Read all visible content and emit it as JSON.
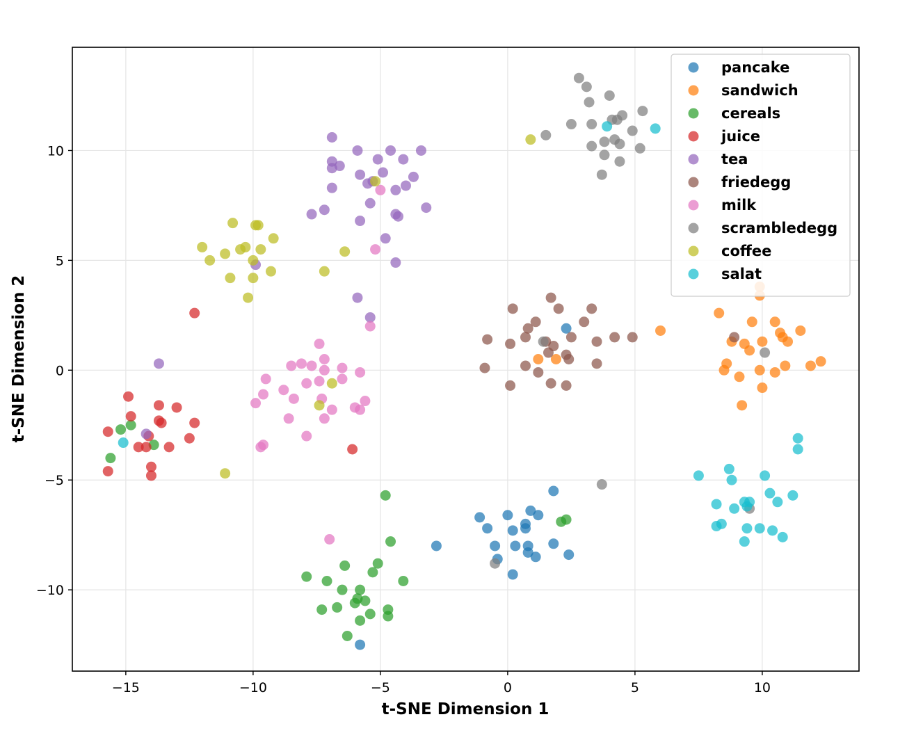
{
  "chart_data": {
    "type": "scatter",
    "title": "",
    "xlabel": "t-SNE Dimension 1",
    "ylabel": "t-SNE Dimension 2",
    "xlim": [
      -17.1,
      13.8
    ],
    "ylim": [
      -13.7,
      14.7
    ],
    "xticks": [
      -15,
      -10,
      -5,
      0,
      5,
      10
    ],
    "yticks": [
      -10,
      -5,
      0,
      5,
      10
    ],
    "xtick_labels": [
      "−15",
      "−10",
      "−5",
      "0",
      "5",
      "10"
    ],
    "ytick_labels": [
      "−10",
      "−5",
      "0",
      "5",
      "10"
    ],
    "grid": true,
    "legend_position": "top-right",
    "series": [
      {
        "name": "pancake",
        "color": "#1f77b4",
        "points": [
          [
            -1.1,
            -6.7
          ],
          [
            -0.8,
            -7.2
          ],
          [
            -0.5,
            -8.0
          ],
          [
            -0.4,
            -8.6
          ],
          [
            0.0,
            -6.6
          ],
          [
            0.2,
            -7.3
          ],
          [
            0.3,
            -8.0
          ],
          [
            0.2,
            -9.3
          ],
          [
            0.7,
            -7.0
          ],
          [
            0.7,
            -7.2
          ],
          [
            0.9,
            -6.4
          ],
          [
            0.8,
            -8.0
          ],
          [
            0.8,
            -8.3
          ],
          [
            1.2,
            -6.6
          ],
          [
            1.1,
            -8.5
          ],
          [
            1.8,
            -5.5
          ],
          [
            1.8,
            -7.9
          ],
          [
            2.4,
            -8.4
          ],
          [
            -2.8,
            -8.0
          ],
          [
            -5.8,
            -12.5
          ],
          [
            2.3,
            1.9
          ]
        ]
      },
      {
        "name": "sandwich",
        "color": "#ff7f0e",
        "points": [
          [
            8.3,
            2.6
          ],
          [
            8.6,
            0.3
          ],
          [
            8.5,
            0.0
          ],
          [
            8.8,
            1.3
          ],
          [
            9.1,
            -0.3
          ],
          [
            9.3,
            1.2
          ],
          [
            9.5,
            0.9
          ],
          [
            9.6,
            2.2
          ],
          [
            9.2,
            -1.6
          ],
          [
            9.9,
            3.4
          ],
          [
            9.9,
            3.8
          ],
          [
            10.0,
            1.3
          ],
          [
            9.9,
            0.0
          ],
          [
            10.0,
            -0.8
          ],
          [
            10.5,
            2.2
          ],
          [
            10.5,
            -0.1
          ],
          [
            10.7,
            1.7
          ],
          [
            10.8,
            1.5
          ],
          [
            10.9,
            0.2
          ],
          [
            11.0,
            1.3
          ],
          [
            11.5,
            1.8
          ],
          [
            11.9,
            0.2
          ],
          [
            12.3,
            0.4
          ],
          [
            6.0,
            1.8
          ],
          [
            1.2,
            0.5
          ],
          [
            1.9,
            0.5
          ]
        ]
      },
      {
        "name": "cereals",
        "color": "#2ca02c",
        "points": [
          [
            -15.6,
            -4.0
          ],
          [
            -15.2,
            -2.7
          ],
          [
            -14.8,
            -2.5
          ],
          [
            -13.9,
            -3.4
          ],
          [
            -7.9,
            -9.4
          ],
          [
            -7.3,
            -10.9
          ],
          [
            -7.1,
            -9.6
          ],
          [
            -6.7,
            -10.8
          ],
          [
            -6.5,
            -10.0
          ],
          [
            -6.4,
            -8.9
          ],
          [
            -6.3,
            -12.1
          ],
          [
            -6.0,
            -10.6
          ],
          [
            -5.9,
            -10.4
          ],
          [
            -5.8,
            -10.0
          ],
          [
            -5.8,
            -11.4
          ],
          [
            -5.6,
            -10.5
          ],
          [
            -5.4,
            -11.1
          ],
          [
            -5.3,
            -9.2
          ],
          [
            -5.1,
            -8.8
          ],
          [
            -4.8,
            -5.7
          ],
          [
            -4.6,
            -7.8
          ],
          [
            -4.7,
            -10.9
          ],
          [
            -4.7,
            -11.2
          ],
          [
            -4.1,
            -9.6
          ],
          [
            2.3,
            -6.8
          ],
          [
            2.1,
            -6.9
          ]
        ]
      },
      {
        "name": "juice",
        "color": "#d62728",
        "points": [
          [
            -15.7,
            -2.8
          ],
          [
            -15.7,
            -4.6
          ],
          [
            -14.9,
            -1.2
          ],
          [
            -14.8,
            -2.1
          ],
          [
            -14.5,
            -3.5
          ],
          [
            -14.2,
            -3.5
          ],
          [
            -14.1,
            -3.0
          ],
          [
            -14.0,
            -4.4
          ],
          [
            -14.0,
            -4.8
          ],
          [
            -13.7,
            -1.6
          ],
          [
            -13.7,
            -2.3
          ],
          [
            -13.6,
            -2.4
          ],
          [
            -13.3,
            -3.5
          ],
          [
            -13.0,
            -1.7
          ],
          [
            -12.5,
            -3.1
          ],
          [
            -12.3,
            -2.4
          ],
          [
            -12.3,
            2.6
          ],
          [
            -6.1,
            -3.6
          ]
        ]
      },
      {
        "name": "tea",
        "color": "#9467bd",
        "points": [
          [
            -6.9,
            10.6
          ],
          [
            -6.9,
            9.5
          ],
          [
            -6.9,
            9.2
          ],
          [
            -6.6,
            9.3
          ],
          [
            -6.9,
            8.3
          ],
          [
            -7.7,
            7.1
          ],
          [
            -7.2,
            7.3
          ],
          [
            -5.9,
            10.0
          ],
          [
            -5.8,
            8.9
          ],
          [
            -5.5,
            8.5
          ],
          [
            -5.3,
            8.6
          ],
          [
            -5.4,
            7.6
          ],
          [
            -5.8,
            6.8
          ],
          [
            -5.1,
            9.6
          ],
          [
            -4.9,
            9.0
          ],
          [
            -4.6,
            10.0
          ],
          [
            -4.1,
            9.6
          ],
          [
            -4.4,
            8.2
          ],
          [
            -4.0,
            8.4
          ],
          [
            -3.7,
            8.8
          ],
          [
            -3.4,
            10.0
          ],
          [
            -4.4,
            7.1
          ],
          [
            -4.3,
            7.0
          ],
          [
            -3.2,
            7.4
          ],
          [
            -4.8,
            6.0
          ],
          [
            -4.4,
            4.9
          ],
          [
            -5.9,
            3.3
          ],
          [
            -5.4,
            2.4
          ],
          [
            -13.7,
            0.3
          ],
          [
            -14.2,
            -2.9
          ],
          [
            -9.9,
            4.8
          ]
        ]
      },
      {
        "name": "friedegg",
        "color": "#8c564b",
        "points": [
          [
            0.2,
            2.8
          ],
          [
            -0.8,
            1.4
          ],
          [
            0.1,
            1.2
          ],
          [
            -0.9,
            0.1
          ],
          [
            0.8,
            1.9
          ],
          [
            0.7,
            1.5
          ],
          [
            1.1,
            2.2
          ],
          [
            1.6,
            0.8
          ],
          [
            1.7,
            3.3
          ],
          [
            1.8,
            1.1
          ],
          [
            2.0,
            2.8
          ],
          [
            1.2,
            -0.1
          ],
          [
            0.7,
            0.2
          ],
          [
            0.1,
            -0.7
          ],
          [
            1.5,
            1.3
          ],
          [
            1.7,
            -0.6
          ],
          [
            2.3,
            0.7
          ],
          [
            2.4,
            0.5
          ],
          [
            2.5,
            1.5
          ],
          [
            2.3,
            -0.7
          ],
          [
            3.0,
            2.2
          ],
          [
            3.3,
            2.8
          ],
          [
            3.5,
            1.3
          ],
          [
            3.5,
            0.3
          ],
          [
            4.2,
            1.5
          ],
          [
            4.9,
            1.5
          ],
          [
            8.9,
            1.5
          ]
        ]
      },
      {
        "name": "milk",
        "color": "#e377c2",
        "points": [
          [
            -7.4,
            1.2
          ],
          [
            -7.7,
            0.2
          ],
          [
            -8.1,
            0.3
          ],
          [
            -8.5,
            0.2
          ],
          [
            -7.2,
            0.5
          ],
          [
            -7.4,
            -0.5
          ],
          [
            -7.2,
            0.0
          ],
          [
            -7.9,
            -0.6
          ],
          [
            -6.5,
            0.1
          ],
          [
            -6.5,
            -0.4
          ],
          [
            -5.8,
            -0.1
          ],
          [
            -8.8,
            -0.9
          ],
          [
            -8.4,
            -1.3
          ],
          [
            -9.5,
            -0.4
          ],
          [
            -9.6,
            -1.1
          ],
          [
            -9.9,
            -1.5
          ],
          [
            -7.3,
            -1.3
          ],
          [
            -7.2,
            -2.2
          ],
          [
            -6.9,
            -1.8
          ],
          [
            -6.0,
            -1.7
          ],
          [
            -5.8,
            -1.8
          ],
          [
            -5.6,
            -1.4
          ],
          [
            -8.6,
            -2.2
          ],
          [
            -7.9,
            -3.0
          ],
          [
            -9.7,
            -3.5
          ],
          [
            -9.6,
            -3.4
          ],
          [
            -7.0,
            -7.7
          ],
          [
            -5.4,
            2.0
          ],
          [
            -5.2,
            5.5
          ],
          [
            -5.0,
            8.2
          ]
        ]
      },
      {
        "name": "scrambledegg",
        "color": "#7f7f7f",
        "points": [
          [
            2.8,
            13.3
          ],
          [
            3.1,
            12.9
          ],
          [
            3.2,
            12.2
          ],
          [
            4.0,
            12.5
          ],
          [
            2.5,
            11.2
          ],
          [
            3.3,
            11.2
          ],
          [
            3.8,
            10.4
          ],
          [
            3.3,
            10.2
          ],
          [
            3.8,
            9.8
          ],
          [
            3.7,
            8.9
          ],
          [
            4.1,
            11.4
          ],
          [
            4.3,
            11.4
          ],
          [
            4.5,
            11.6
          ],
          [
            4.2,
            10.5
          ],
          [
            4.4,
            10.3
          ],
          [
            4.9,
            10.9
          ],
          [
            4.4,
            9.5
          ],
          [
            5.3,
            11.8
          ],
          [
            5.2,
            10.1
          ],
          [
            1.5,
            10.7
          ],
          [
            3.7,
            -5.2
          ],
          [
            -0.5,
            -8.8
          ],
          [
            1.4,
            1.3
          ],
          [
            9.5,
            -6.3
          ],
          [
            10.1,
            0.8
          ]
        ]
      },
      {
        "name": "coffee",
        "color": "#bcbd22",
        "points": [
          [
            -12.0,
            5.6
          ],
          [
            -11.7,
            5.0
          ],
          [
            -11.1,
            5.3
          ],
          [
            -10.8,
            6.7
          ],
          [
            -10.9,
            4.2
          ],
          [
            -10.5,
            5.5
          ],
          [
            -10.3,
            5.6
          ],
          [
            -10.0,
            5.0
          ],
          [
            -10.0,
            4.2
          ],
          [
            -9.9,
            6.6
          ],
          [
            -9.8,
            6.6
          ],
          [
            -9.7,
            5.5
          ],
          [
            -9.3,
            4.5
          ],
          [
            -9.2,
            6.0
          ],
          [
            -10.2,
            3.3
          ],
          [
            -7.2,
            4.5
          ],
          [
            -6.4,
            5.4
          ],
          [
            -6.9,
            -0.6
          ],
          [
            -7.4,
            -1.6
          ],
          [
            -11.1,
            -4.7
          ],
          [
            -5.2,
            8.6
          ],
          [
            0.9,
            10.5
          ]
        ]
      },
      {
        "name": "salat",
        "color": "#17becf",
        "points": [
          [
            7.5,
            -4.8
          ],
          [
            8.2,
            -6.1
          ],
          [
            8.2,
            -7.1
          ],
          [
            8.4,
            -7.0
          ],
          [
            8.7,
            -4.5
          ],
          [
            8.8,
            -5.0
          ],
          [
            8.9,
            -6.3
          ],
          [
            9.3,
            -6.0
          ],
          [
            9.4,
            -6.2
          ],
          [
            9.4,
            -7.2
          ],
          [
            9.5,
            -6.0
          ],
          [
            9.3,
            -7.8
          ],
          [
            9.9,
            -7.2
          ],
          [
            10.1,
            -4.8
          ],
          [
            10.3,
            -5.6
          ],
          [
            10.4,
            -7.3
          ],
          [
            10.6,
            -6.0
          ],
          [
            10.8,
            -7.6
          ],
          [
            11.2,
            -5.7
          ],
          [
            11.4,
            -3.1
          ],
          [
            11.4,
            -3.6
          ],
          [
            -15.1,
            -3.3
          ],
          [
            3.9,
            11.1
          ],
          [
            5.8,
            11.0
          ]
        ]
      }
    ]
  }
}
